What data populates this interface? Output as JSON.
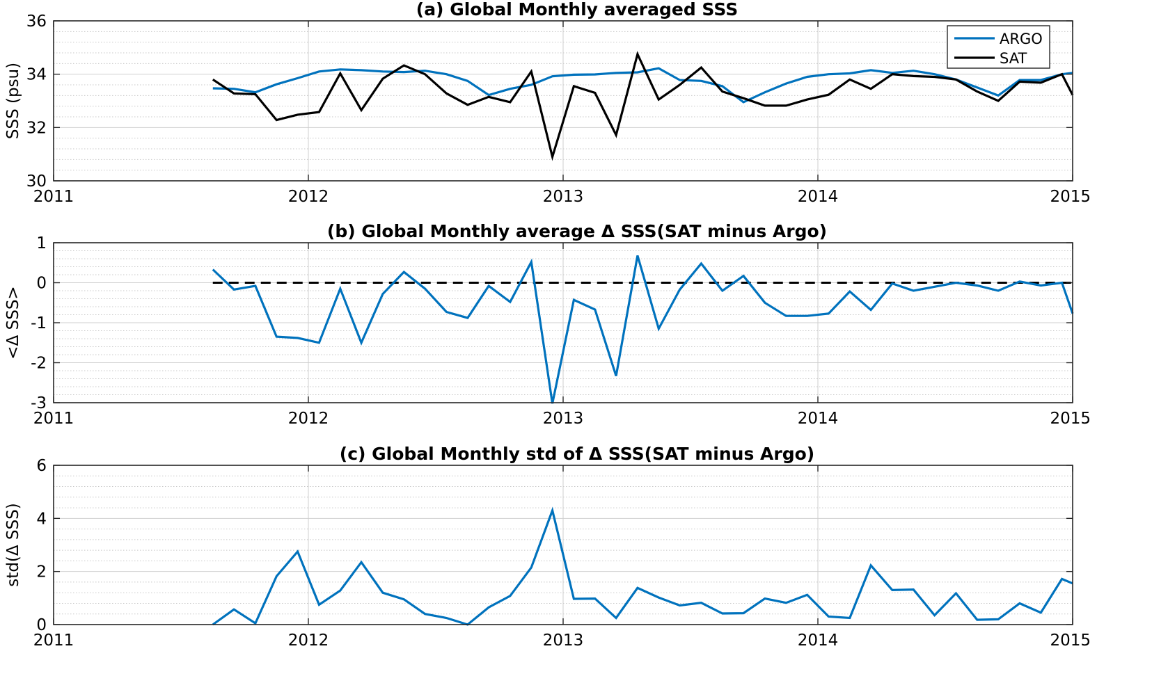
{
  "colors": {
    "argo": "#0072bd",
    "sat": "#000000",
    "grid": "#cfcfcf",
    "minor_grid": "#c8c8c8"
  },
  "chart_data": [
    {
      "type": "line",
      "title": "(a) Global Monthly averaged SSS",
      "xlabel": "",
      "ylabel": "SSS (psu)",
      "xlim": [
        2011,
        2015
      ],
      "ylim": [
        30,
        36
      ],
      "xticks": [
        "2011",
        "2012",
        "2013",
        "2014",
        "2015"
      ],
      "yticks": [
        "30",
        "32",
        "34",
        "36"
      ],
      "grid": true,
      "legend_position": "top-right",
      "series": [
        {
          "name": "ARGO",
          "x": [
            2011.625,
            2011.708,
            2011.792,
            2011.875,
            2011.958,
            2012.042,
            2012.125,
            2012.208,
            2012.292,
            2012.375,
            2012.458,
            2012.542,
            2012.625,
            2012.708,
            2012.792,
            2012.875,
            2012.958,
            2013.042,
            2013.125,
            2013.208,
            2013.292,
            2013.375,
            2013.458,
            2013.542,
            2013.625,
            2013.708,
            2013.792,
            2013.875,
            2013.958,
            2014.042,
            2014.125,
            2014.208,
            2014.292,
            2014.375,
            2014.458,
            2014.542,
            2014.625,
            2014.708,
            2014.792,
            2014.875,
            2014.958,
            2015.0
          ],
          "values": [
            33.47,
            33.45,
            33.32,
            33.62,
            33.85,
            34.1,
            34.18,
            34.15,
            34.1,
            34.08,
            34.13,
            34.0,
            33.75,
            33.22,
            33.45,
            33.6,
            33.92,
            33.98,
            33.99,
            34.05,
            34.07,
            34.22,
            33.78,
            33.75,
            33.55,
            32.95,
            33.32,
            33.65,
            33.9,
            34.0,
            34.03,
            34.15,
            34.05,
            34.13,
            34.0,
            33.8,
            33.5,
            33.2,
            33.78,
            33.78,
            34.0,
            34.05
          ]
        },
        {
          "name": "SAT",
          "x": [
            2011.625,
            2011.708,
            2011.792,
            2011.875,
            2011.958,
            2012.042,
            2012.125,
            2012.208,
            2012.292,
            2012.375,
            2012.458,
            2012.542,
            2012.625,
            2012.708,
            2012.792,
            2012.875,
            2012.958,
            2013.042,
            2013.125,
            2013.208,
            2013.292,
            2013.375,
            2013.458,
            2013.542,
            2013.625,
            2013.708,
            2013.792,
            2013.875,
            2013.958,
            2014.042,
            2014.125,
            2014.208,
            2014.292,
            2014.375,
            2014.458,
            2014.542,
            2014.625,
            2014.708,
            2014.792,
            2014.875,
            2014.958,
            2015.0
          ],
          "values": [
            33.8,
            33.28,
            33.25,
            32.28,
            32.48,
            32.58,
            34.03,
            32.65,
            33.83,
            34.33,
            34.0,
            33.28,
            32.85,
            33.15,
            32.95,
            34.1,
            30.9,
            33.55,
            33.3,
            31.72,
            34.75,
            33.05,
            33.6,
            34.25,
            33.35,
            33.1,
            32.82,
            32.82,
            33.05,
            33.23,
            33.8,
            33.45,
            34.0,
            33.93,
            33.9,
            33.8,
            33.35,
            33.0,
            33.72,
            33.68,
            34.0,
            33.22
          ]
        }
      ]
    },
    {
      "type": "line",
      "title": "(b) Global Monthly average Δ SSS(SAT minus Argo)",
      "xlabel": "",
      "ylabel": "<Δ SSS>",
      "xlim": [
        2011,
        2015
      ],
      "ylim": [
        -3,
        1
      ],
      "xticks": [
        "2011",
        "2012",
        "2013",
        "2014",
        "2015"
      ],
      "yticks": [
        "-3",
        "-2",
        "-1",
        "0",
        "1"
      ],
      "grid": true,
      "reference_line": {
        "y": 0,
        "x_start": 2011.625,
        "x_end": 2015.0,
        "style": "dashed"
      },
      "series": [
        {
          "name": "",
          "x": [
            2011.625,
            2011.708,
            2011.792,
            2011.875,
            2011.958,
            2012.042,
            2012.125,
            2012.208,
            2012.292,
            2012.375,
            2012.458,
            2012.542,
            2012.625,
            2012.708,
            2012.792,
            2012.875,
            2012.958,
            2013.042,
            2013.125,
            2013.208,
            2013.292,
            2013.375,
            2013.458,
            2013.542,
            2013.625,
            2013.708,
            2013.792,
            2013.875,
            2013.958,
            2014.042,
            2014.125,
            2014.208,
            2014.292,
            2014.375,
            2014.458,
            2014.542,
            2014.625,
            2014.708,
            2014.792,
            2014.875,
            2014.958,
            2015.0
          ],
          "values": [
            0.33,
            -0.17,
            -0.08,
            -1.35,
            -1.38,
            -1.5,
            -0.15,
            -1.5,
            -0.28,
            0.27,
            -0.15,
            -0.73,
            -0.88,
            -0.08,
            -0.48,
            0.52,
            -3.02,
            -0.43,
            -0.67,
            -2.33,
            0.68,
            -1.15,
            -0.17,
            0.48,
            -0.2,
            0.17,
            -0.5,
            -0.83,
            -0.83,
            -0.77,
            -0.22,
            -0.68,
            -0.02,
            -0.2,
            -0.1,
            0.0,
            -0.07,
            -0.2,
            0.03,
            -0.07,
            0.0,
            -0.77
          ]
        }
      ]
    },
    {
      "type": "line",
      "title": "(c) Global Monthly std of Δ SSS(SAT minus Argo)",
      "xlabel": "",
      "ylabel": "std(Δ SSS)",
      "xlim": [
        2011,
        2015
      ],
      "ylim": [
        0,
        6
      ],
      "xticks": [
        "2011",
        "2012",
        "2013",
        "2014",
        "2015"
      ],
      "yticks": [
        "0",
        "2",
        "4",
        "6"
      ],
      "grid": true,
      "series": [
        {
          "name": "",
          "x": [
            2011.625,
            2011.708,
            2011.792,
            2011.875,
            2011.958,
            2012.042,
            2012.125,
            2012.208,
            2012.292,
            2012.375,
            2012.458,
            2012.542,
            2012.625,
            2012.708,
            2012.792,
            2012.875,
            2012.958,
            2013.042,
            2013.125,
            2013.208,
            2013.292,
            2013.375,
            2013.458,
            2013.542,
            2013.625,
            2013.708,
            2013.792,
            2013.875,
            2013.958,
            2014.042,
            2014.125,
            2014.208,
            2014.292,
            2014.375,
            2014.458,
            2014.542,
            2014.625,
            2014.708,
            2014.792,
            2014.875,
            2014.958,
            2015.0
          ],
          "values": [
            0.0,
            0.57,
            0.05,
            1.82,
            2.75,
            0.75,
            1.28,
            2.35,
            1.2,
            0.95,
            0.4,
            0.25,
            0.0,
            0.65,
            1.08,
            2.15,
            4.3,
            0.97,
            0.98,
            0.25,
            1.38,
            1.02,
            0.72,
            0.82,
            0.42,
            0.43,
            0.98,
            0.82,
            1.12,
            0.3,
            0.25,
            2.23,
            1.3,
            1.32,
            0.35,
            1.18,
            0.18,
            0.2,
            0.8,
            0.45,
            1.72,
            1.55
          ]
        }
      ]
    }
  ]
}
